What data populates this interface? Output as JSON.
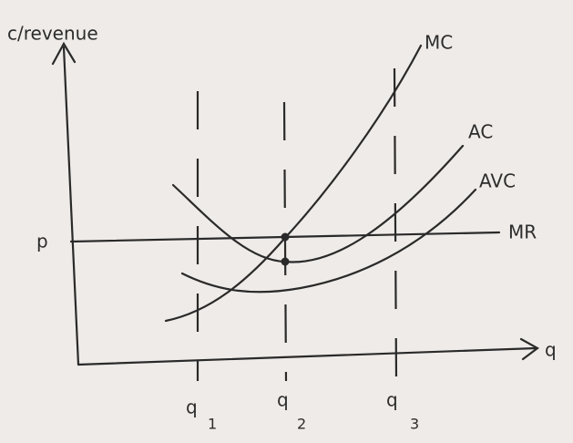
{
  "axes": {
    "y_label": "c/revenue",
    "x_label": "q"
  },
  "price_label": "p",
  "curves": [
    {
      "label": "MC"
    },
    {
      "label": "AC"
    },
    {
      "label": "AVC"
    },
    {
      "label": "MR"
    }
  ],
  "quantities": [
    {
      "label": "q",
      "sub": "1"
    },
    {
      "label": "q",
      "sub": "2"
    },
    {
      "label": "q",
      "sub": "3"
    }
  ]
}
